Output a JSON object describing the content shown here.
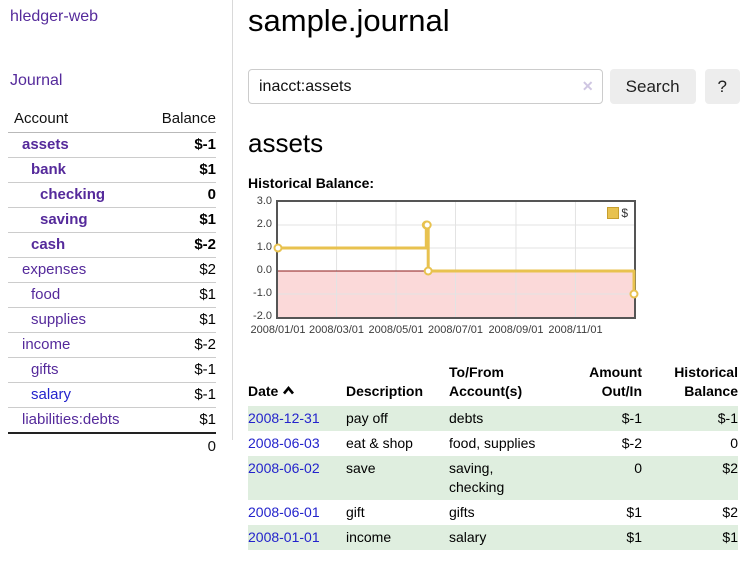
{
  "app": {
    "brand": "hledger-web",
    "nav_journal": "Journal"
  },
  "sidebar": {
    "header": {
      "account": "Account",
      "balance": "Balance"
    },
    "accounts": [
      {
        "name": "assets",
        "balance": "$-1"
      },
      {
        "name": "bank",
        "balance": "$1"
      },
      {
        "name": "checking",
        "balance": "0"
      },
      {
        "name": "saving",
        "balance": "$1"
      },
      {
        "name": "cash",
        "balance": "$-2"
      },
      {
        "name": "expenses",
        "balance": "$2"
      },
      {
        "name": "food",
        "balance": "$1"
      },
      {
        "name": "supplies",
        "balance": "$1"
      },
      {
        "name": "income",
        "balance": "$-2"
      },
      {
        "name": "gifts",
        "balance": "$-1"
      },
      {
        "name": "salary",
        "balance": "$-1"
      },
      {
        "name": "liabilities:debts",
        "balance": "$1"
      }
    ],
    "total": "0"
  },
  "header": {
    "title": "sample.journal"
  },
  "search": {
    "value": "inacct:assets",
    "clear_glyph": "✕",
    "button_label": "Search",
    "help_label": "?"
  },
  "account_page": {
    "heading": "assets",
    "chart_label": "Historical Balance:"
  },
  "chart_data": {
    "type": "line",
    "step": true,
    "title": "Historical Balance",
    "series": [
      {
        "name": "$",
        "color": "#e8c24f",
        "points": [
          [
            "2008-01-01",
            1
          ],
          [
            "2008-06-01",
            2
          ],
          [
            "2008-06-02",
            2
          ],
          [
            "2008-06-03",
            0
          ],
          [
            "2008-12-31",
            -1
          ]
        ]
      }
    ],
    "xlim": [
      "2008-01-01",
      "2008-12-31"
    ],
    "ylim": [
      -2,
      3
    ],
    "x_ticks": [
      "2008/01/01",
      "2008/03/01",
      "2008/05/01",
      "2008/07/01",
      "2008/09/01",
      "2008/11/01"
    ],
    "y_ticks": [
      "3.0",
      "2.0",
      "1.0",
      "0.0",
      "-1.0",
      "-2.0"
    ],
    "legend": "$",
    "legend_position": "top-right",
    "grid": true,
    "gridline_color": "#e3e3e3",
    "negative_region_color": "#fbd9d9",
    "zero_line_color": "#8b1a1a"
  },
  "register": {
    "columns": [
      {
        "label": "Date"
      },
      {
        "label": "Description"
      },
      {
        "label": "To/From\nAccount(s)"
      },
      {
        "label": "Amount\nOut/In"
      },
      {
        "label": "Historical\nBalance"
      }
    ],
    "rows": [
      {
        "date": "2008-12-31",
        "description": "pay off",
        "accounts": "debts",
        "amount": "$-1",
        "balance": "$-1"
      },
      {
        "date": "2008-06-03",
        "description": "eat & shop",
        "accounts": "food, supplies",
        "amount": "$-2",
        "balance": "0"
      },
      {
        "date": "2008-06-02",
        "description": "save",
        "accounts": "saving,\nchecking",
        "amount": "0",
        "balance": "$2"
      },
      {
        "date": "2008-06-01",
        "description": "gift",
        "accounts": "gifts",
        "amount": "$1",
        "balance": "$2"
      },
      {
        "date": "2008-01-01",
        "description": "income",
        "accounts": "salary",
        "amount": "$1",
        "balance": "$1"
      }
    ]
  },
  "colors": {
    "accent_purple": "#552a9b",
    "link_blue": "#2323cc",
    "negative": "#9e1b1b",
    "negative_muted": "#c06868",
    "row_green": "#dfeedf",
    "chart_gold": "#e8c24f"
  }
}
